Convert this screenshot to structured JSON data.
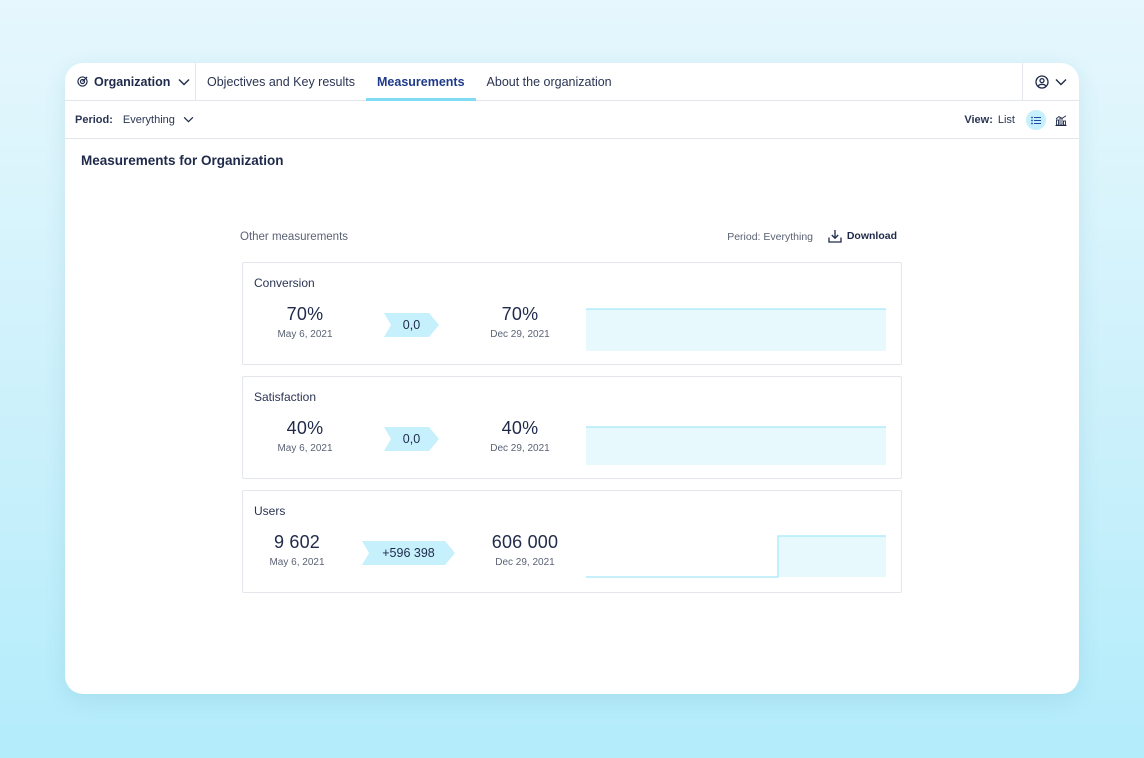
{
  "header": {
    "org_label": "Organization",
    "tabs": [
      {
        "label": "Objectives and Key results"
      },
      {
        "label": "Measurements"
      },
      {
        "label": "About the organization"
      }
    ]
  },
  "filter": {
    "period_label": "Period:",
    "period_value": "Everything",
    "view_label": "View:",
    "view_value": "List"
  },
  "page": {
    "title": "Measurements for Organization"
  },
  "section": {
    "title": "Other measurements",
    "period": "Period: Everything",
    "download_label": "Download"
  },
  "measurements": [
    {
      "name": "Conversion",
      "start_value": "70%",
      "start_date": "May 6, 2021",
      "change": "0,0",
      "end_value": "70%",
      "end_date": "Dec 29, 2021"
    },
    {
      "name": "Satisfaction",
      "start_value": "40%",
      "start_date": "May 6, 2021",
      "change": "0,0",
      "end_value": "40%",
      "end_date": "Dec 29, 2021"
    },
    {
      "name": "Users",
      "start_value": "9 602",
      "start_date": "May 6, 2021",
      "change": "+596 398",
      "end_value": "606 000",
      "end_date": "Dec 29, 2021"
    }
  ],
  "colors": {
    "accent": "#7fdcf2",
    "badge": "#c6f0fb",
    "spark_fill": "#e8f9fe",
    "spark_line": "#a5e7f6"
  },
  "icons": {
    "org": "target-icon",
    "user": "user-circle-icon",
    "list_view": "list-icon",
    "chart_view": "chart-icon",
    "download": "download-icon"
  }
}
